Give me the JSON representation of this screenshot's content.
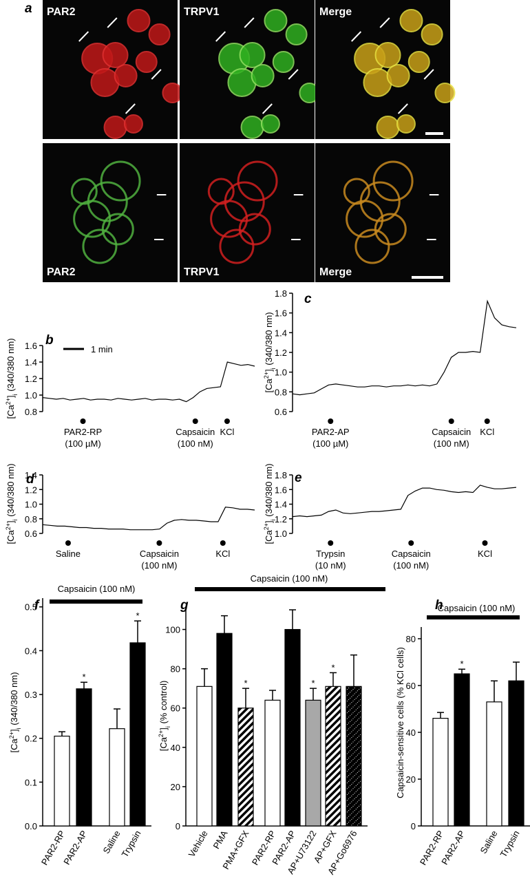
{
  "figure_a": {
    "panel": "a",
    "top_labels": [
      "PAR2",
      "TRPV1",
      "Merge"
    ],
    "bottom_labels": [
      "PAR2",
      "TRPV1",
      "Merge"
    ]
  },
  "chart_data": [
    {
      "type": "line",
      "panel": "b",
      "ylabel": [
        "[Ca",
        "2+",
        "]",
        "i",
        " (340/380 nm)"
      ],
      "ylim": [
        0.8,
        1.6
      ],
      "yticks": [
        0.8,
        {
          "value": 1,
          "label": "1.0"
        },
        1.2,
        1.4,
        1.6
      ],
      "scale_bar": "1 min",
      "color": "#000000",
      "values": [
        0.97,
        0.96,
        0.95,
        0.96,
        0.94,
        0.95,
        0.96,
        0.94,
        0.95,
        0.95,
        0.94,
        0.96,
        0.95,
        0.94,
        0.95,
        0.96,
        0.94,
        0.95,
        0.95,
        0.94,
        0.95,
        0.92,
        0.97,
        1.04,
        1.08,
        1.09,
        1.1,
        1.4,
        1.38,
        1.36,
        1.37,
        1.35
      ],
      "annotations": [
        [
          "PAR2-RP",
          "(100 µM)"
        ],
        [
          "Capsaicin",
          "(100 nM)"
        ],
        [
          "KCl"
        ]
      ]
    },
    {
      "type": "line",
      "panel": "c",
      "ylabel": [
        "[Ca",
        "2+",
        "]",
        "i",
        " (340/380 nm)"
      ],
      "ylim": [
        0.6,
        1.8
      ],
      "yticks": [
        0.6,
        0.8,
        {
          "value": 1,
          "label": "1.0"
        },
        1.2,
        1.4,
        1.6,
        1.8
      ],
      "color": "#000000",
      "values": [
        0.78,
        0.77,
        0.78,
        0.79,
        0.83,
        0.87,
        0.88,
        0.87,
        0.86,
        0.85,
        0.85,
        0.86,
        0.86,
        0.85,
        0.86,
        0.86,
        0.87,
        0.86,
        0.87,
        0.86,
        0.88,
        1.0,
        1.15,
        1.2,
        1.2,
        1.21,
        1.2,
        1.72,
        1.55,
        1.48,
        1.46,
        1.45
      ],
      "annotations": [
        [
          "PAR2-AP",
          "(100 µM)"
        ],
        [
          "Capsaicin",
          "(100 nM)"
        ],
        [
          "KCl"
        ]
      ]
    },
    {
      "type": "line",
      "panel": "d",
      "ylabel": [
        "[Ca",
        "2+",
        "]",
        "i",
        " (340/380 nm)"
      ],
      "ylim": [
        0.6,
        1.4
      ],
      "yticks": [
        0.6,
        0.8,
        {
          "value": 1,
          "label": "1.0"
        },
        1.2,
        1.4
      ],
      "color": "#000000",
      "values": [
        0.72,
        0.71,
        0.7,
        0.7,
        0.69,
        0.68,
        0.68,
        0.67,
        0.67,
        0.66,
        0.66,
        0.66,
        0.65,
        0.65,
        0.65,
        0.65,
        0.66,
        0.74,
        0.78,
        0.79,
        0.78,
        0.78,
        0.77,
        0.76,
        0.76,
        0.96,
        0.95,
        0.93,
        0.93,
        0.92
      ],
      "annotations": [
        [
          "Saline"
        ],
        [
          "Capsaicin",
          "(100 nM)"
        ],
        [
          "KCl"
        ]
      ]
    },
    {
      "type": "line",
      "panel": "e",
      "ylabel": [
        "[Ca",
        "2+",
        "]",
        "i",
        " (340/380 nm)"
      ],
      "ylim": [
        1,
        1.8
      ],
      "yticks": [
        {
          "value": 1,
          "label": "1.0"
        },
        1.2,
        1.4,
        1.6,
        1.8
      ],
      "color": "#000000",
      "values": [
        1.23,
        1.24,
        1.23,
        1.24,
        1.25,
        1.3,
        1.32,
        1.28,
        1.27,
        1.28,
        1.29,
        1.3,
        1.3,
        1.31,
        1.32,
        1.33,
        1.52,
        1.58,
        1.62,
        1.62,
        1.6,
        1.59,
        1.57,
        1.56,
        1.57,
        1.56,
        1.66,
        1.63,
        1.61,
        1.61,
        1.62,
        1.63
      ],
      "annotations": [
        [
          "Trypsin",
          "(10 nM)"
        ],
        [
          "Capsaicin",
          "(100 nM)"
        ],
        [
          "KCl"
        ]
      ]
    },
    {
      "type": "bar",
      "panel": "f",
      "stimulus": "Capsaicin (100 nM)",
      "ylabel": [
        "[Ca",
        "2+",
        "]",
        "i",
        " (340/380 nm)"
      ],
      "ylim": [
        0,
        0.52
      ],
      "yticks": [
        {
          "value": 0,
          "label": "0.0"
        },
        0.1,
        0.2,
        0.3,
        0.4,
        0.5
      ],
      "categories": [
        "PAR2-RP",
        "PAR2-AP",
        "Saline",
        "Trypsin"
      ],
      "values": [
        0.205,
        0.313,
        0.222,
        0.418
      ],
      "errors": [
        0.01,
        0.015,
        0.045,
        0.05
      ],
      "fills": [
        "white",
        "black",
        "white",
        "black"
      ],
      "stars": [
        null,
        "*",
        null,
        "*"
      ]
    },
    {
      "type": "bar",
      "panel": "g",
      "stimulus": "Capsaicin (100 nM)",
      "ylabel": [
        "[Ca",
        "2+",
        "]",
        "i",
        " (% control)"
      ],
      "ylim": [
        0,
        110
      ],
      "yticks": [
        0,
        20,
        40,
        60,
        80,
        100
      ],
      "categories": [
        "Vehicle",
        "PMA",
        "PMA+GFX",
        "PAR2-RP",
        "PAR2-AP",
        "AP+U73122",
        "AP+GFX",
        "AP+Go6976"
      ],
      "values": [
        71,
        98,
        60,
        64,
        100,
        64,
        71,
        71
      ],
      "errors": [
        9,
        9,
        10,
        5,
        10,
        6,
        7,
        16
      ],
      "fills": [
        "white",
        "black",
        "hatch",
        "white",
        "black",
        "gray",
        "hatch",
        "dots"
      ],
      "stars": [
        null,
        null,
        "*",
        null,
        null,
        "*",
        "*",
        null
      ]
    },
    {
      "type": "bar",
      "panel": "h",
      "stimulus": "Capsaicin (100 nM)",
      "ylabel": [
        "Capsaicin-sensitive cells (% KCl cells)"
      ],
      "ylim": [
        0,
        85
      ],
      "yticks": [
        0,
        20,
        40,
        60,
        80
      ],
      "categories": [
        "PAR2-RP",
        "PAR2-AP",
        "Saline",
        "Trypsin"
      ],
      "values": [
        46,
        65,
        53,
        62
      ],
      "errors": [
        2.5,
        2,
        9,
        8
      ],
      "fills": [
        "white",
        "black",
        "white",
        "black"
      ],
      "stars": [
        null,
        "*",
        null,
        null
      ]
    }
  ]
}
